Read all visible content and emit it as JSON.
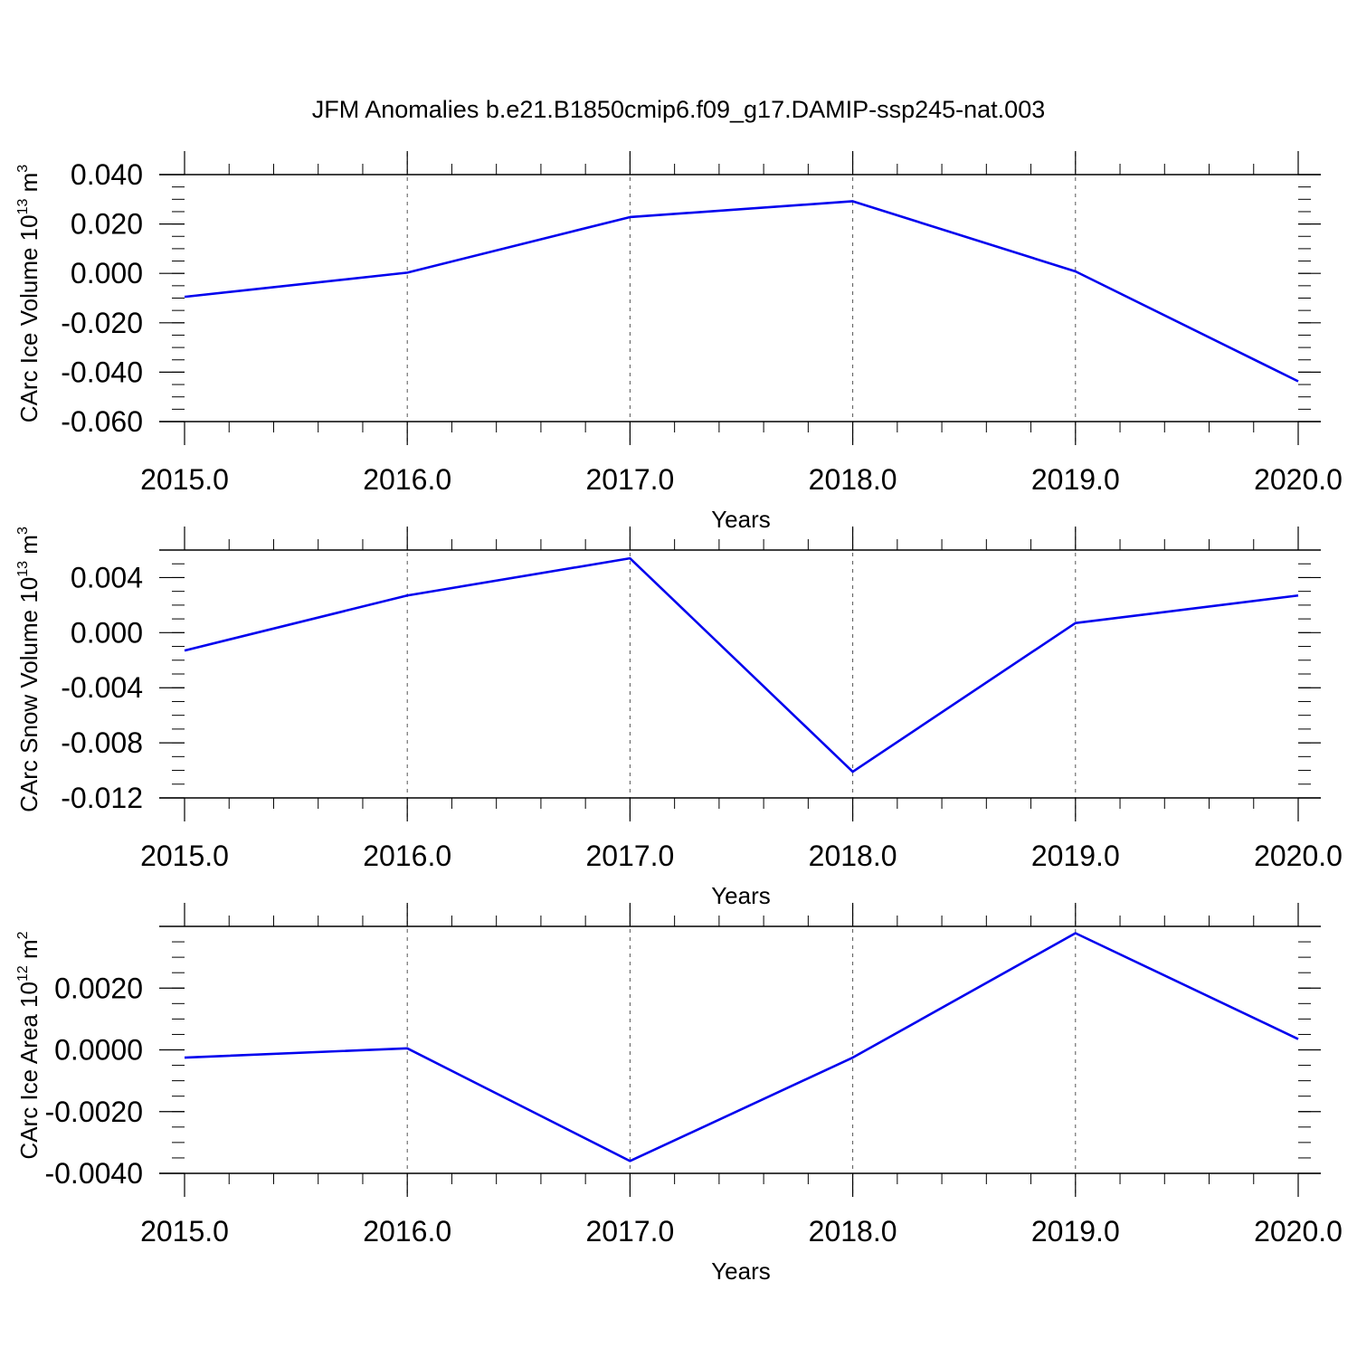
{
  "title": "JFM Anomalies b.e21.B1850cmip6.f09_g17.DAMIP-ssp245-nat.003",
  "chart_data": [
    {
      "type": "line",
      "xlabel": "Years",
      "ylabel": "CArc Ice Volume 10",
      "ylabel_sup": "13",
      "ylabel_unit": "m",
      "ylabel_unit_sup": "3",
      "x": [
        2015,
        2016,
        2017,
        2018,
        2019,
        2020
      ],
      "x_tick_labels": [
        "2015.0",
        "2016.0",
        "2017.0",
        "2018.0",
        "2019.0",
        "2020.0"
      ],
      "xlim": [
        2015,
        2020
      ],
      "y_ticks": [
        0.04,
        0.02,
        0.0,
        -0.02,
        -0.04,
        -0.06
      ],
      "y_tick_labels": [
        "0.040",
        "0.020",
        "0.000",
        "-0.020",
        "-0.040",
        "-0.060"
      ],
      "ylim": [
        -0.06,
        0.04
      ],
      "series": [
        {
          "values": [
            -0.0095,
            0.0003,
            0.0228,
            0.0292,
            0.0008,
            -0.0437
          ],
          "color": "#0000ee"
        }
      ],
      "grid": "vertical dashed at years"
    },
    {
      "type": "line",
      "xlabel": "Years",
      "ylabel": "CArc Snow Volume 10",
      "ylabel_sup": "13",
      "ylabel_unit": "m",
      "ylabel_unit_sup": "3",
      "x": [
        2015,
        2016,
        2017,
        2018,
        2019,
        2020
      ],
      "x_tick_labels": [
        "2015.0",
        "2016.0",
        "2017.0",
        "2018.0",
        "2019.0",
        "2020.0"
      ],
      "xlim": [
        2015,
        2020
      ],
      "y_ticks": [
        0.004,
        0.0,
        -0.004,
        -0.008,
        -0.012
      ],
      "y_tick_labels": [
        "0.004",
        "0.000",
        "-0.004",
        "-0.008",
        "-0.012"
      ],
      "ylim": [
        -0.012,
        0.006
      ],
      "series": [
        {
          "values": [
            -0.0013,
            0.0027,
            0.0054,
            -0.0101,
            0.0007,
            0.0027
          ],
          "color": "#0000ee"
        }
      ],
      "grid": "vertical dashed at years"
    },
    {
      "type": "line",
      "xlabel": "Years",
      "ylabel": "CArc Ice Area 10",
      "ylabel_sup": "12",
      "ylabel_unit": "m",
      "ylabel_unit_sup": "2",
      "x": [
        2015,
        2016,
        2017,
        2018,
        2019,
        2020
      ],
      "x_tick_labels": [
        "2015.0",
        "2016.0",
        "2017.0",
        "2018.0",
        "2019.0",
        "2020.0"
      ],
      "xlim": [
        2015,
        2020
      ],
      "y_ticks": [
        0.002,
        0.0,
        -0.002,
        -0.004
      ],
      "y_tick_labels": [
        "0.0020",
        "0.0000",
        "-0.0020",
        "-0.0040"
      ],
      "ylim": [
        -0.004,
        0.004
      ],
      "series": [
        {
          "values": [
            -0.00025,
            5e-05,
            -0.0036,
            -0.00025,
            0.00378,
            0.00035
          ],
          "color": "#0000ee"
        }
      ],
      "grid": "vertical dashed at years"
    }
  ]
}
